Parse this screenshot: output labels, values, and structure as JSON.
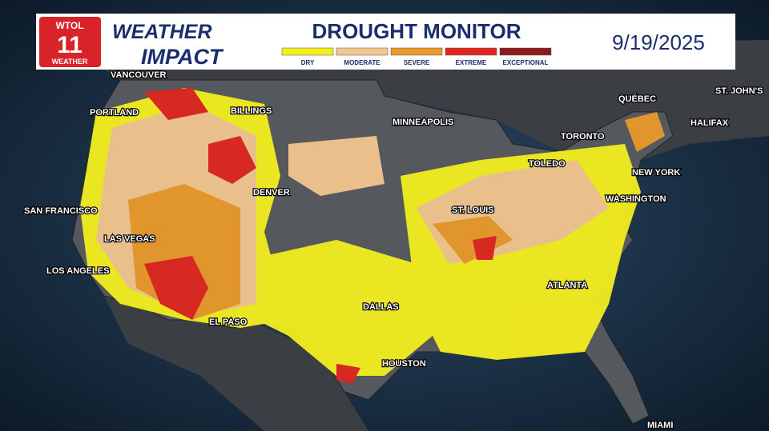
{
  "header": {
    "logo": {
      "call_sign": "WTOL",
      "channel": "11",
      "network": "WEATHER"
    },
    "brand": {
      "line1": "WEATHER",
      "line2": "IMPACT"
    },
    "title": "DROUGHT MONITOR",
    "date": "9/19/2025"
  },
  "legend": [
    {
      "label": "DRY",
      "color": "#f4ee1f"
    },
    {
      "label": "MODERATE",
      "color": "#f1c68f"
    },
    {
      "label": "SEVERE",
      "color": "#e99a2b"
    },
    {
      "label": "EXTREME",
      "color": "#e0261f"
    },
    {
      "label": "EXCEPTIONAL",
      "color": "#8c1b1b"
    }
  ],
  "cities": [
    "VANCOUVER",
    "PORTLAND",
    "BILLINGS",
    "MINNEAPOLIS",
    "QUÉBEC",
    "ST. JOHN'S",
    "HALIFAX",
    "TORONTO",
    "TOLEDO",
    "NEW YORK",
    "DENVER",
    "WASHINGTON",
    "SAN FRANCISCO",
    "ST. LOUIS",
    "LAS VEGAS",
    "LOS ANGELES",
    "ATLANTA",
    "DALLAS",
    "EL PASO",
    "HOUSTON",
    "MIAMI"
  ]
}
